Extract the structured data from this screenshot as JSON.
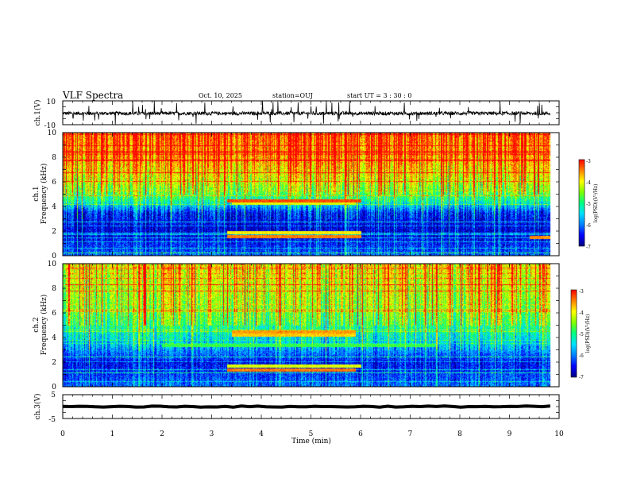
{
  "header": {
    "title": "VLF Spectra",
    "date": "Oct. 10, 2025",
    "station": "station=OUJ",
    "start": "start  UT =   3  : 30 : 0"
  },
  "colors": {
    "colormap": [
      "#00007f",
      "#0000ff",
      "#0080ff",
      "#00e0ff",
      "#00ff80",
      "#80ff00",
      "#ffff00",
      "#ff8000",
      "#ff0000"
    ]
  },
  "chart_data": [
    {
      "id": "ch1-voltage",
      "type": "line",
      "title": "",
      "ylabel": "ch.1(V)",
      "ylim": [
        -10,
        10
      ],
      "yticks": [
        "10",
        "-10"
      ],
      "xlim": [
        0,
        10
      ],
      "baseline": -0.5,
      "noise": 1.5,
      "spike_count": 45,
      "series": [
        {
          "name": "ch.1",
          "description": "broadband waveform, approx. -3..+3 V with spikes"
        }
      ]
    },
    {
      "id": "ch1-spectrogram",
      "type": "heatmap",
      "ylabel": "ch.1\nFrequency (kHz)",
      "ylabel_lines": [
        "ch.1",
        "Frequency (kHz)"
      ],
      "ylim": [
        0,
        10
      ],
      "yticks": [
        "0",
        "2",
        "4",
        "6",
        "8",
        "10"
      ],
      "xlim": [
        0,
        10
      ],
      "data_end_min": 9.82,
      "background_level_by_freq_khz": [
        [
          0,
          0.22
        ],
        [
          2,
          0.08
        ],
        [
          3.5,
          0.15
        ],
        [
          4.5,
          0.48
        ],
        [
          6,
          0.66
        ],
        [
          8,
          0.82
        ],
        [
          10,
          0.88
        ]
      ],
      "horizontal_lines_khz": [
        {
          "f": 4.5,
          "t0": 3.3,
          "t1": 6.0,
          "level": 0.93
        },
        {
          "f": 4.3,
          "t0": 3.4,
          "t1": 5.9,
          "level": 0.72
        },
        {
          "f": 1.6,
          "t0": 3.3,
          "t1": 6.0,
          "level": 0.88
        },
        {
          "f": 1.9,
          "t0": 3.3,
          "t1": 6.0,
          "level": 0.76
        },
        {
          "f": 1.5,
          "t0": 9.4,
          "t1": 9.82,
          "level": 0.86
        }
      ],
      "colorbar": {
        "label": "log(PSD)(V²/Hz)",
        "ticks": [
          "-3",
          "-4",
          "-5",
          "-6",
          "-7"
        ],
        "range": [
          -7,
          -3
        ]
      }
    },
    {
      "id": "ch2-spectrogram",
      "type": "heatmap",
      "ylabel_lines": [
        "ch.2",
        "Frequency (kHz)"
      ],
      "ylim": [
        0,
        10
      ],
      "yticks": [
        "0",
        "2",
        "4",
        "6",
        "8",
        "10"
      ],
      "xlim": [
        0,
        10
      ],
      "data_end_min": 9.82,
      "background_level_by_freq_khz": [
        [
          0,
          0.24
        ],
        [
          2,
          0.12
        ],
        [
          3.5,
          0.35
        ],
        [
          5,
          0.5
        ],
        [
          7,
          0.62
        ],
        [
          10,
          0.72
        ]
      ],
      "horizontal_lines_khz": [
        {
          "f": 3.4,
          "t0": 2.0,
          "t1": 7.5,
          "level": 0.55
        },
        {
          "f": 4.5,
          "t0": 3.4,
          "t1": 5.9,
          "level": 0.85
        },
        {
          "f": 4.2,
          "t0": 3.4,
          "t1": 5.9,
          "level": 0.8
        },
        {
          "f": 1.4,
          "t0": 3.3,
          "t1": 5.9,
          "level": 0.88
        },
        {
          "f": 1.7,
          "t0": 3.3,
          "t1": 6.0,
          "level": 0.72
        }
      ],
      "colorbar": {
        "label": "log(PSD)(V²/Hz)",
        "ticks": [
          "-3",
          "-4",
          "-5",
          "-6",
          "-7"
        ],
        "range": [
          -7,
          -3
        ]
      }
    },
    {
      "id": "ch3-voltage",
      "type": "line",
      "ylabel": "ch.3(V)",
      "ylim": [
        -5,
        5
      ],
      "yticks": [
        "5",
        "-5"
      ],
      "xlim": [
        0,
        10
      ],
      "baseline": 0,
      "noise": 0.25,
      "series": [
        {
          "name": "ch.3",
          "description": "flat thick trace near 0 V"
        }
      ]
    }
  ],
  "xaxis": {
    "label": "Time (min)",
    "ticks": [
      "0",
      "1",
      "2",
      "3",
      "4",
      "5",
      "6",
      "7",
      "8",
      "9",
      "10"
    ]
  }
}
